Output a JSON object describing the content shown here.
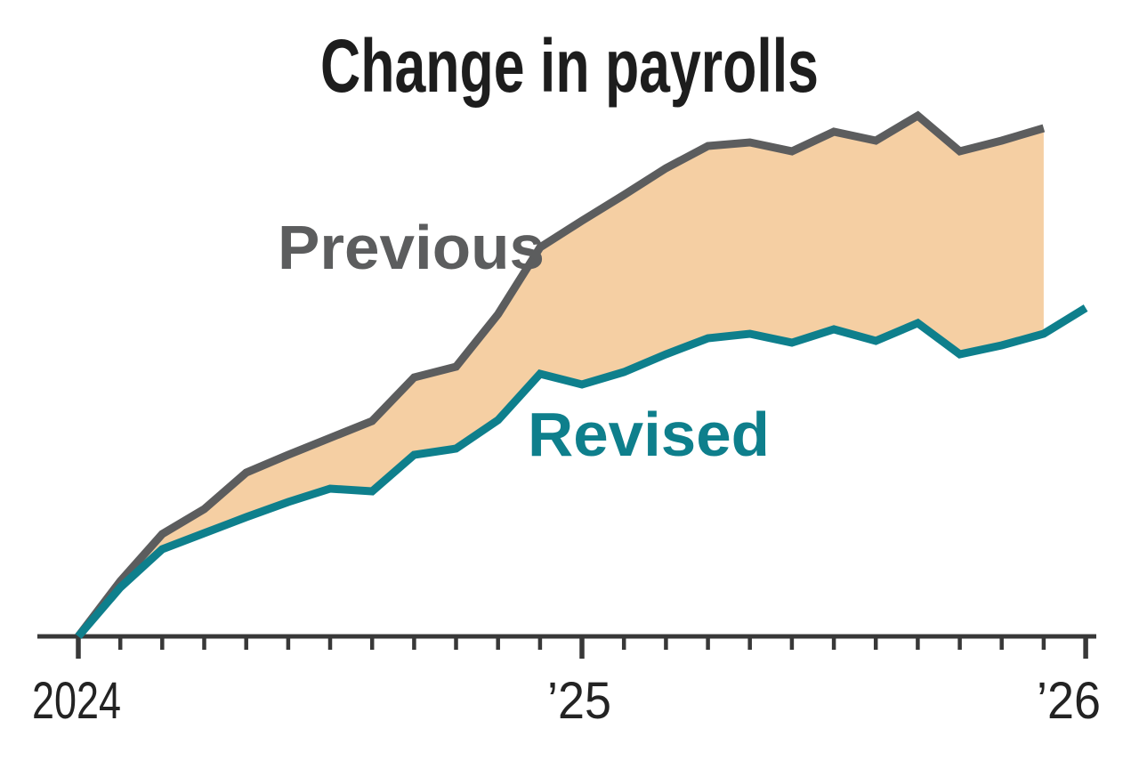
{
  "chart_data": {
    "type": "line",
    "title": "Change in payrolls",
    "title_color": "#1d1d1d",
    "x_tick_labels": [
      "2024",
      "’25",
      "’26"
    ],
    "x_tick_interval": "month",
    "x_range": [
      "2024-01",
      "2026-01"
    ],
    "x_months": 25,
    "major_tick_indices": [
      0,
      12,
      24
    ],
    "axis_color": "#383838",
    "tick_label_color": "#232323",
    "ylim": [
      0,
      620
    ],
    "y_axis_note": "no y-axis shown; values are cumulative change since Jan 2024 in relative chart units",
    "gap_fill_color": "#f5cfa3",
    "series": [
      {
        "name": "Previous",
        "color": "#5c5d5e",
        "values": [
          0,
          62,
          115,
          143,
          184,
          204,
          223,
          242,
          291,
          303,
          362,
          437,
          467,
          496,
          526,
          551,
          555,
          545,
          567,
          557,
          585,
          545,
          557,
          571
        ]
      },
      {
        "name": "Revised",
        "color": "#0e7f8c",
        "values": [
          0,
          55,
          98,
          116,
          134,
          151,
          166,
          163,
          204,
          211,
          243,
          295,
          283,
          297,
          317,
          335,
          340,
          330,
          345,
          332,
          352,
          317,
          327,
          340,
          369
        ]
      }
    ],
    "annotations": [
      {
        "text": "Previous"
      },
      {
        "text": "Revised"
      }
    ],
    "legend": "inline series labels on chart"
  }
}
